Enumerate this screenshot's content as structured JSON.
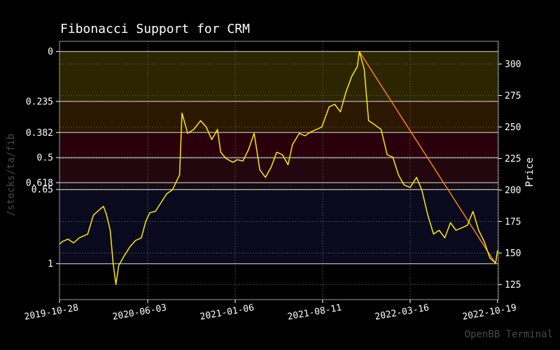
{
  "page": {
    "watermark": "OpenBB Terminal",
    "side_label": "/stocks/ta/fib"
  },
  "chart_data": {
    "type": "line",
    "title": "Fibonacci Support for CRM",
    "ylabel": "Price",
    "ylim": [
      113,
      318
    ],
    "xlim": [
      "2019-10-28",
      "2022-10-21"
    ],
    "x_ticks": [
      "2019-10-28",
      "2020-06-03",
      "2021-01-06",
      "2021-08-11",
      "2022-03-16",
      "2022-10-19"
    ],
    "y_ticks": [
      125,
      150,
      175,
      200,
      225,
      250,
      275,
      300
    ],
    "grid": true,
    "fib_levels": [
      {
        "label": "0",
        "value": 0,
        "price": 309.9,
        "fill": "#2b2600"
      },
      {
        "label": "0.235",
        "value": 0.235,
        "price": 270.3,
        "fill": "#2c1700"
      },
      {
        "label": "0.382",
        "value": 0.382,
        "price": 245.6,
        "fill": "#2a000d"
      },
      {
        "label": "0.5",
        "value": 0.5,
        "price": 225.7,
        "fill": "#22080e"
      },
      {
        "label": "0.618",
        "value": 0.618,
        "price": 205.8,
        "fill": "#150a12"
      },
      {
        "label": "0.65",
        "value": 0.65,
        "price": 200.4,
        "fill": "#0a0a1e"
      },
      {
        "label": "1",
        "value": 1,
        "price": 141.5,
        "fill": null
      }
    ],
    "trend_line": {
      "start": [
        "2021-11-10",
        309.9
      ],
      "end": [
        "2022-10-14",
        141.5
      ]
    },
    "series": [
      {
        "color": "#ffea00",
        "points": [
          [
            "2019-10-28",
            157
          ],
          [
            "2019-11-04",
            159
          ],
          [
            "2019-11-18",
            161
          ],
          [
            "2019-12-02",
            158
          ],
          [
            "2019-12-16",
            162
          ],
          [
            "2020-01-06",
            165
          ],
          [
            "2020-01-20",
            180
          ],
          [
            "2020-02-03",
            184
          ],
          [
            "2020-02-14",
            187
          ],
          [
            "2020-02-21",
            181
          ],
          [
            "2020-03-02",
            168
          ],
          [
            "2020-03-09",
            142
          ],
          [
            "2020-03-16",
            125
          ],
          [
            "2020-03-23",
            140
          ],
          [
            "2020-04-06",
            148
          ],
          [
            "2020-04-20",
            155
          ],
          [
            "2020-05-04",
            160
          ],
          [
            "2020-05-18",
            162
          ],
          [
            "2020-05-29",
            175
          ],
          [
            "2020-06-08",
            182
          ],
          [
            "2020-06-22",
            183
          ],
          [
            "2020-07-06",
            190
          ],
          [
            "2020-07-20",
            197
          ],
          [
            "2020-08-03",
            200
          ],
          [
            "2020-08-21",
            212
          ],
          [
            "2020-08-27",
            261
          ],
          [
            "2020-09-10",
            245
          ],
          [
            "2020-09-25",
            248
          ],
          [
            "2020-10-12",
            255
          ],
          [
            "2020-10-26",
            250
          ],
          [
            "2020-11-09",
            240
          ],
          [
            "2020-11-23",
            248
          ],
          [
            "2020-12-01",
            230
          ],
          [
            "2020-12-14",
            225
          ],
          [
            "2020-12-31",
            222
          ],
          [
            "2021-01-11",
            224
          ],
          [
            "2021-01-25",
            223
          ],
          [
            "2021-02-08",
            232
          ],
          [
            "2021-02-22",
            245
          ],
          [
            "2021-03-08",
            216
          ],
          [
            "2021-03-22",
            210
          ],
          [
            "2021-04-05",
            218
          ],
          [
            "2021-04-19",
            230
          ],
          [
            "2021-05-03",
            228
          ],
          [
            "2021-05-17",
            220
          ],
          [
            "2021-05-28",
            236
          ],
          [
            "2021-06-14",
            245
          ],
          [
            "2021-06-28",
            243
          ],
          [
            "2021-07-12",
            246
          ],
          [
            "2021-07-26",
            248
          ],
          [
            "2021-08-09",
            250
          ],
          [
            "2021-08-27",
            266
          ],
          [
            "2021-09-10",
            268
          ],
          [
            "2021-09-24",
            262
          ],
          [
            "2021-10-08",
            278
          ],
          [
            "2021-10-22",
            290
          ],
          [
            "2021-11-05",
            298
          ],
          [
            "2021-11-10",
            309.9
          ],
          [
            "2021-11-22",
            296
          ],
          [
            "2021-12-03",
            255
          ],
          [
            "2021-12-17",
            252
          ],
          [
            "2022-01-03",
            248
          ],
          [
            "2022-01-18",
            228
          ],
          [
            "2022-02-01",
            226
          ],
          [
            "2022-02-15",
            212
          ],
          [
            "2022-03-01",
            204
          ],
          [
            "2022-03-16",
            202
          ],
          [
            "2022-04-01",
            210
          ],
          [
            "2022-04-14",
            200
          ],
          [
            "2022-04-29",
            180
          ],
          [
            "2022-05-13",
            165
          ],
          [
            "2022-05-27",
            168
          ],
          [
            "2022-06-10",
            162
          ],
          [
            "2022-06-24",
            174
          ],
          [
            "2022-07-08",
            168
          ],
          [
            "2022-07-22",
            170
          ],
          [
            "2022-08-05",
            172
          ],
          [
            "2022-08-19",
            183
          ],
          [
            "2022-09-02",
            168
          ],
          [
            "2022-09-16",
            159
          ],
          [
            "2022-09-30",
            146
          ],
          [
            "2022-10-14",
            142
          ],
          [
            "2022-10-19",
            152
          ]
        ]
      }
    ]
  }
}
